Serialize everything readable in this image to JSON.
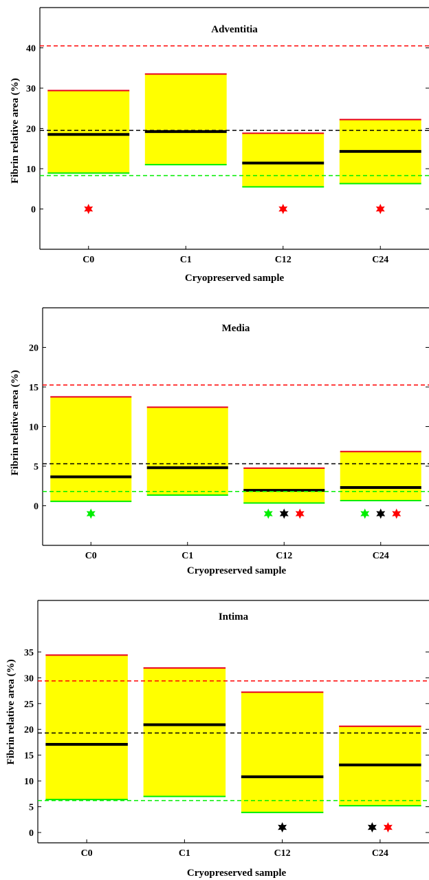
{
  "chart_data": [
    {
      "type": "bar",
      "title": "Adventitia",
      "xlabel": "Cryopreserved sample",
      "ylabel": "Fibrin relative area (%)",
      "ylim": [
        -10,
        50
      ],
      "yticks": [
        0,
        10,
        20,
        30,
        40
      ],
      "categories": [
        "C0",
        "C1",
        "C12",
        "C24"
      ],
      "boxes": [
        {
          "low": 8.9,
          "median": 18.5,
          "high": 29.4
        },
        {
          "low": 11.0,
          "median": 19.2,
          "high": 33.5
        },
        {
          "low": 5.5,
          "median": 11.4,
          "high": 18.8
        },
        {
          "low": 6.3,
          "median": 14.3,
          "high": 22.2
        }
      ],
      "reference_lines": {
        "red": 40.5,
        "black": 19.5,
        "green": 8.3
      },
      "stars": [
        {
          "category": "C0",
          "color": "#ff0000"
        },
        {
          "category": "C12",
          "color": "#ff0000"
        },
        {
          "category": "C24",
          "color": "#ff0000"
        }
      ],
      "star_y": 0,
      "colors": {
        "fill": "#ffff00",
        "high": "#e8001c",
        "low": "#00ee00",
        "median": "#000000"
      }
    },
    {
      "type": "bar",
      "title": "Media",
      "xlabel": "Cryopreserved sample",
      "ylabel": "Fibrin relative area (%)",
      "ylim": [
        -5,
        25
      ],
      "yticks": [
        0,
        5,
        10,
        15,
        20
      ],
      "categories": [
        "C0",
        "C1",
        "C12",
        "C24"
      ],
      "boxes": [
        {
          "low": 0.55,
          "median": 3.65,
          "high": 13.75
        },
        {
          "low": 1.35,
          "median": 4.8,
          "high": 12.45
        },
        {
          "low": 0.35,
          "median": 1.95,
          "high": 4.75
        },
        {
          "low": 0.65,
          "median": 2.3,
          "high": 6.85
        }
      ],
      "reference_lines": {
        "red": 15.25,
        "black": 5.3,
        "green": 1.8
      },
      "stars": [
        {
          "category": "C0",
          "color": "#00ee00"
        },
        {
          "category": "C12",
          "color": "#00ee00"
        },
        {
          "category": "C12",
          "color": "#000000"
        },
        {
          "category": "C12",
          "color": "#ff0000"
        },
        {
          "category": "C24",
          "color": "#00ee00"
        },
        {
          "category": "C24",
          "color": "#000000"
        },
        {
          "category": "C24",
          "color": "#ff0000"
        }
      ],
      "star_y": -1,
      "colors": {
        "fill": "#ffff00",
        "high": "#e8001c",
        "low": "#00ee00",
        "median": "#000000"
      }
    },
    {
      "type": "bar",
      "title": "Intima",
      "xlabel": "Cryopreserved sample",
      "ylabel": "Fibrin relative area (%)",
      "ylim": [
        -2,
        45
      ],
      "yticks": [
        0,
        5,
        10,
        15,
        20,
        25,
        30,
        35
      ],
      "categories": [
        "C0",
        "C1",
        "C12",
        "C24"
      ],
      "boxes": [
        {
          "low": 6.4,
          "median": 17.1,
          "high": 34.4
        },
        {
          "low": 7.0,
          "median": 20.9,
          "high": 31.9
        },
        {
          "low": 3.9,
          "median": 10.8,
          "high": 27.2
        },
        {
          "low": 5.2,
          "median": 13.1,
          "high": 20.6
        }
      ],
      "reference_lines": {
        "red": 29.4,
        "black": 19.3,
        "green": 6.2
      },
      "stars": [
        {
          "category": "C12",
          "color": "#000000"
        },
        {
          "category": "C24",
          "color": "#000000"
        },
        {
          "category": "C24",
          "color": "#ff0000"
        }
      ],
      "star_y": 1,
      "colors": {
        "fill": "#ffff00",
        "high": "#e8001c",
        "low": "#00ee00",
        "median": "#000000"
      }
    }
  ]
}
